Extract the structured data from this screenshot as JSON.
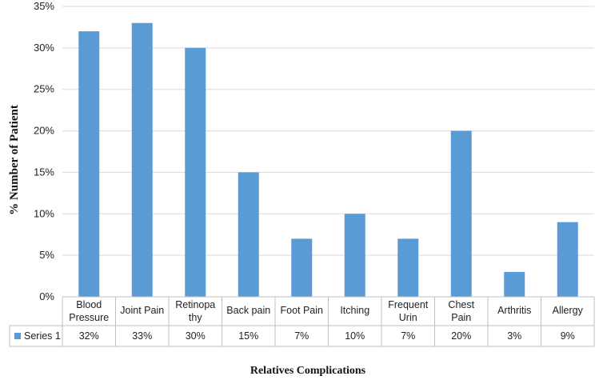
{
  "chart_data": {
    "type": "bar",
    "categories": [
      [
        "Blood",
        "Pressure"
      ],
      [
        "Joint Pain"
      ],
      [
        "Retinopa",
        "thy"
      ],
      [
        "Back pain"
      ],
      [
        "Foot Pain"
      ],
      [
        "Itching"
      ],
      [
        "Frequent",
        "Urin"
      ],
      [
        "Chest",
        "Pain"
      ],
      [
        "Arthritis"
      ],
      [
        "Allergy"
      ]
    ],
    "series": [
      {
        "name": "Series 1",
        "values": [
          32,
          33,
          30,
          15,
          7,
          10,
          7,
          20,
          3,
          9
        ],
        "table_labels": [
          "32%",
          "33%",
          "30%",
          "15%",
          "7%",
          "10%",
          "7%",
          "20%",
          "3%",
          "9%"
        ],
        "color": "#5B9BD5"
      }
    ],
    "ylim": [
      0,
      35
    ],
    "yticks": [
      0,
      5,
      10,
      15,
      20,
      25,
      30,
      35
    ],
    "ytick_labels": [
      "0%",
      "5%",
      "10%",
      "15%",
      "20%",
      "25%",
      "30%",
      "35%"
    ],
    "ylabel": "%  Number of Patient",
    "xlabel": "Relatives Complications",
    "grid": true,
    "data_table": true,
    "gridline_color": "#d9d9d9",
    "axis_color": "#bfbfbf"
  }
}
